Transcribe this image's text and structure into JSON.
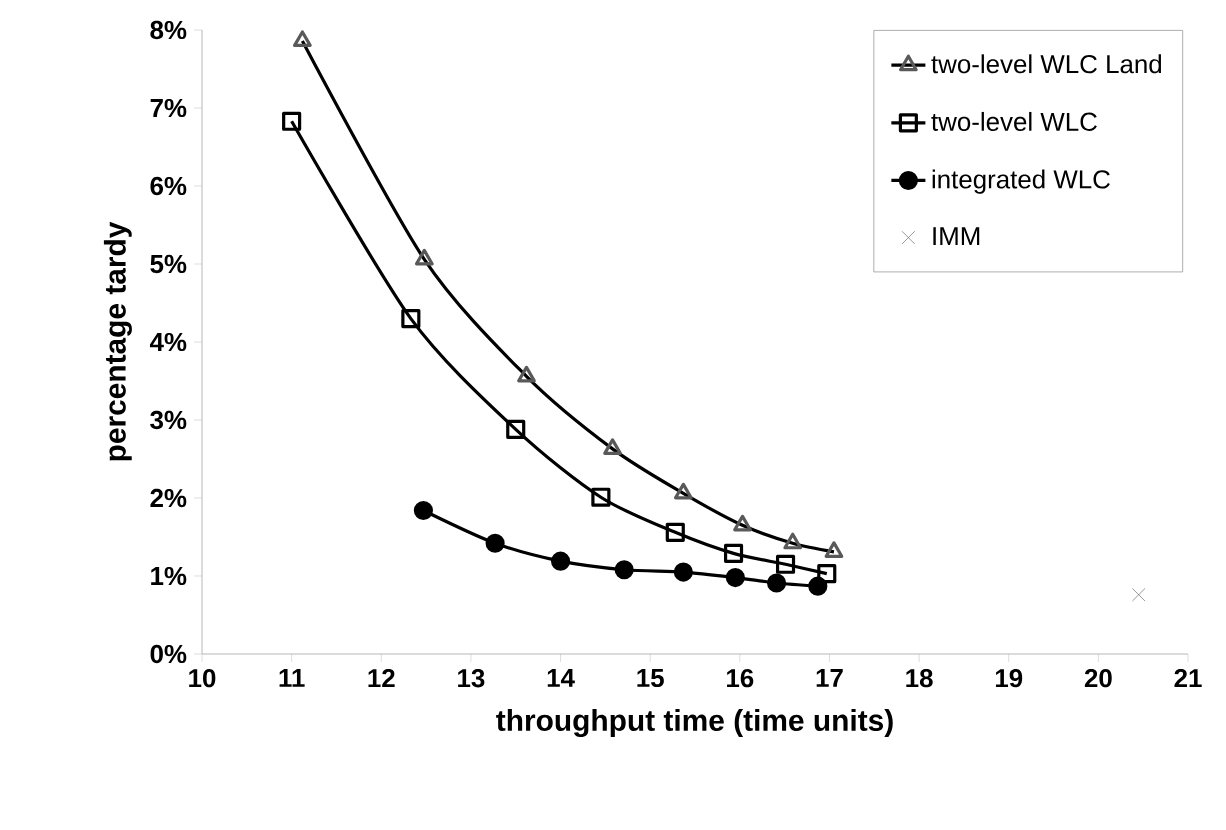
{
  "chart_data": {
    "type": "line",
    "xlabel": "throughput time (time units)",
    "ylabel": "percentage tardy",
    "xlim": [
      10,
      21
    ],
    "xticks": [
      10,
      11,
      12,
      13,
      14,
      15,
      16,
      17,
      18,
      19,
      20,
      21
    ],
    "ylim": [
      0,
      8
    ],
    "yticks": [
      {
        "value": 0,
        "label": "0%"
      },
      {
        "value": 1,
        "label": "1%"
      },
      {
        "value": 2,
        "label": "2%"
      },
      {
        "value": 3,
        "label": "3%"
      },
      {
        "value": 4,
        "label": "4%"
      },
      {
        "value": 5,
        "label": "5%"
      },
      {
        "value": 6,
        "label": "6%"
      },
      {
        "value": 7,
        "label": "7%"
      },
      {
        "value": 8,
        "label": "8%"
      }
    ],
    "grid": false,
    "legend": "top right",
    "series": [
      {
        "name": "two-level WLC Land",
        "color": "#000000",
        "marker": "triangle",
        "x": [
          11.12,
          12.48,
          13.62,
          14.58,
          15.37,
          16.03,
          16.59,
          17.05
        ],
        "values": [
          7.86,
          5.06,
          3.56,
          2.63,
          2.06,
          1.65,
          1.42,
          1.31
        ]
      },
      {
        "name": "two-level WLC",
        "color": "#000000",
        "marker": "square",
        "x": [
          11.0,
          12.33,
          13.5,
          14.45,
          15.28,
          15.93,
          16.51,
          16.97
        ],
        "values": [
          6.83,
          4.3,
          2.88,
          2.01,
          1.56,
          1.29,
          1.15,
          1.03
        ]
      },
      {
        "name": "integrated WLC",
        "color": "#000000",
        "marker": "circle",
        "x": [
          12.47,
          13.27,
          14.0,
          14.71,
          15.37,
          15.95,
          16.41,
          16.87
        ],
        "values": [
          1.84,
          1.42,
          1.19,
          1.08,
          1.05,
          0.98,
          0.91,
          0.87
        ]
      },
      {
        "name": "IMM",
        "type": "scatter",
        "color": "#808080",
        "marker": "cross",
        "x": [
          20.45
        ],
        "values": [
          0.76
        ]
      }
    ]
  }
}
